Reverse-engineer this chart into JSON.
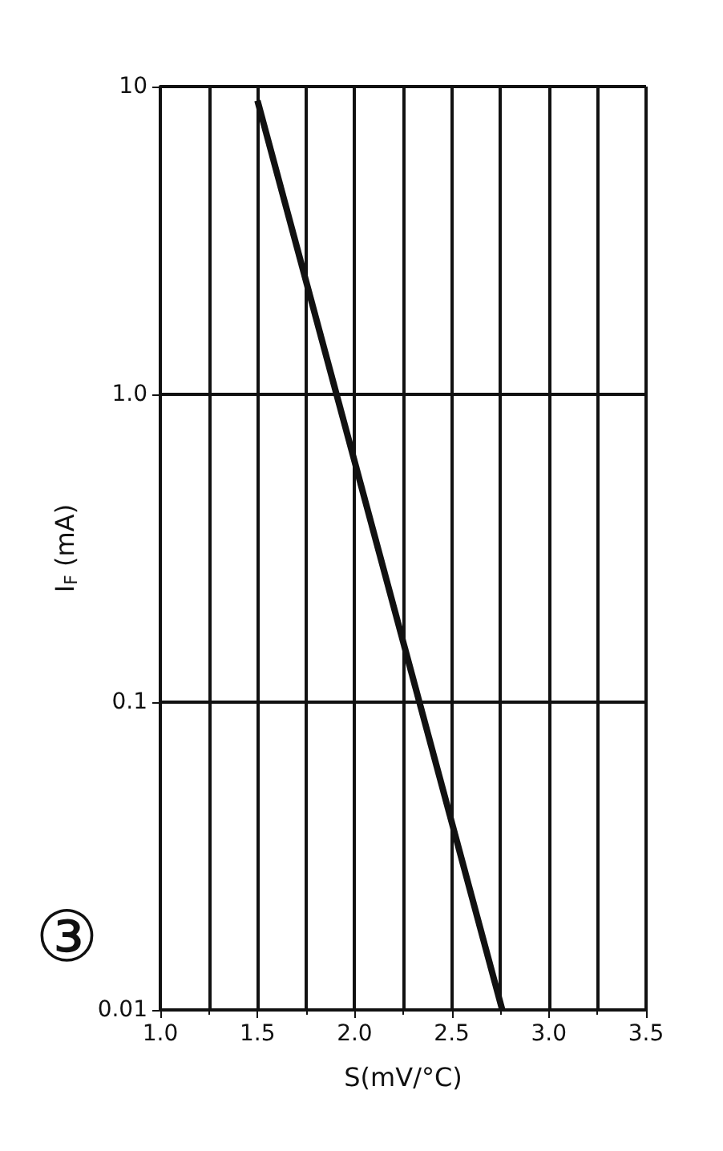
{
  "chart_data": {
    "type": "line",
    "xlabel": "S(mV/°C)",
    "ylabel": "I$_{F}$ (mA)",
    "annotations": [
      "③"
    ],
    "x": [
      1.5,
      2.76
    ],
    "series": [
      {
        "color": "#111111",
        "values": [
          9,
          0.01
        ]
      }
    ],
    "xlim": [
      1.0,
      3.5
    ],
    "xticks": [
      {
        "value": 1,
        "label": "1.0"
      },
      1.5,
      {
        "value": 2,
        "label": "2.0"
      },
      2.5,
      {
        "value": 3,
        "label": "3.0"
      },
      3.5
    ],
    "ylim": [
      0.01,
      10
    ],
    "yticks": [
      0.01,
      0.1,
      {
        "value": 1,
        "label": "1.0"
      },
      10
    ],
    "log": "y",
    "grid": true,
    "marker": "none",
    "line_style": "solid"
  }
}
